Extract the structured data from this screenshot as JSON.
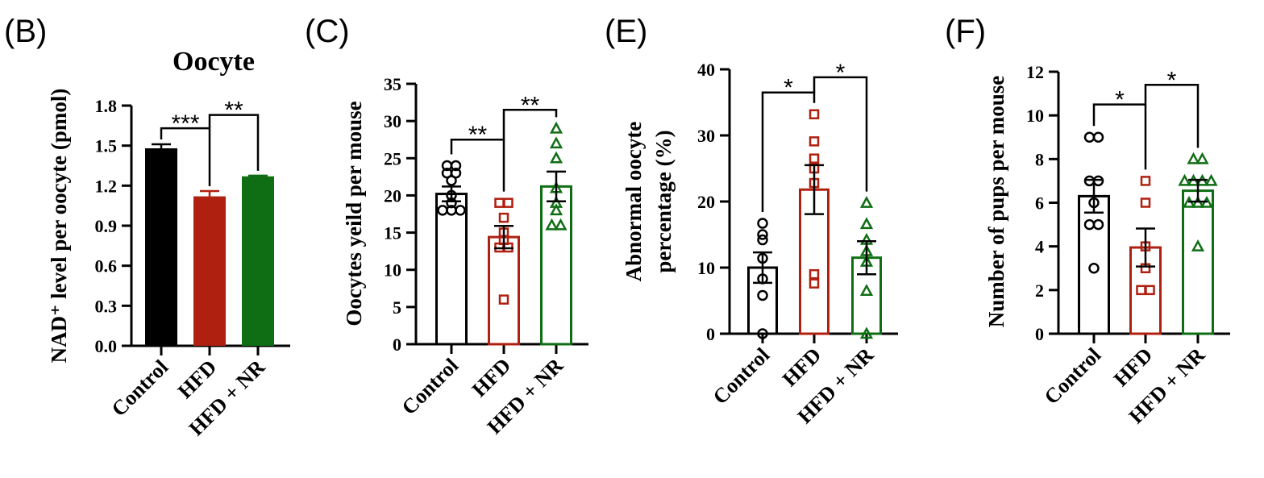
{
  "chart_data": [
    {
      "panel_label": "(B)",
      "type": "bar",
      "title": "Oocyte",
      "ylabel": [
        "NAD⁺ level per oocyte (pmol)"
      ],
      "categories": [
        "Control",
        "HFD",
        "HFD + NR"
      ],
      "ylim": [
        0,
        1.8
      ],
      "yticks": [
        "0.0",
        "0.3",
        "0.6",
        "0.9",
        "1.2",
        "1.5",
        "1.8"
      ],
      "filled": true,
      "values": [
        1.48,
        1.12,
        1.27
      ],
      "sem": [
        0.03,
        0.04,
        0.005
      ],
      "points": [],
      "significance": [
        {
          "from": 0,
          "to": 1,
          "label": "***",
          "level": 1.63
        },
        {
          "from": 1,
          "to": 2,
          "label": "**",
          "level": 1.73
        }
      ]
    },
    {
      "panel_label": "(C)",
      "type": "bar",
      "title": "",
      "ylabel": [
        "Oocytes yeild per mouse"
      ],
      "categories": [
        "Control",
        "HFD",
        "HFD + NR"
      ],
      "ylim": [
        0,
        35
      ],
      "yticks": [
        "0",
        "5",
        "10",
        "15",
        "20",
        "25",
        "30",
        "35"
      ],
      "filled": false,
      "values": [
        20.2,
        14.4,
        21.2
      ],
      "sem": [
        1.0,
        1.5,
        2.0
      ],
      "points": [
        [
          24,
          24,
          23,
          23,
          22,
          20,
          19,
          18,
          18,
          18
        ],
        [
          19,
          19,
          17,
          15,
          14,
          13,
          13,
          6
        ],
        [
          29,
          27,
          25,
          21,
          19,
          18,
          16,
          16
        ]
      ],
      "significance": [
        {
          "from": 0,
          "to": 1,
          "label": "**",
          "level": 27.5
        },
        {
          "from": 1,
          "to": 2,
          "label": "**",
          "level": 31.5
        }
      ]
    },
    {
      "panel_label": "(E)",
      "type": "bar",
      "title": "",
      "ylabel": [
        "Abnormal oocyte",
        "percentage (%)"
      ],
      "categories": [
        "Control",
        "HFD",
        "HFD + NR"
      ],
      "ylim": [
        0,
        40
      ],
      "yticks": [
        "0",
        "10",
        "20",
        "30",
        "40"
      ],
      "filled": false,
      "values": [
        10.0,
        21.8,
        11.5
      ],
      "sem": [
        2.3,
        3.7,
        2.5
      ],
      "points": [
        [
          16.7,
          15.0,
          14.2,
          11.4,
          8.3,
          5.8,
          0
        ],
        [
          33.2,
          29.1,
          26.5,
          25.0,
          22.8,
          9.0,
          7.6
        ],
        [
          19.8,
          16.6,
          14.2,
          12.5,
          10.9,
          6.5,
          0
        ]
      ],
      "significance": [
        {
          "from": 0,
          "to": 1,
          "label": "*",
          "level": 36.5
        },
        {
          "from": 1,
          "to": 2,
          "label": "*",
          "level": 38.8
        }
      ]
    },
    {
      "panel_label": "(F)",
      "type": "bar",
      "title": "",
      "ylabel": [
        "Number of pups per mouse"
      ],
      "categories": [
        "Control",
        "HFD",
        "HFD + NR"
      ],
      "ylim": [
        0,
        12
      ],
      "yticks": [
        "0",
        "2",
        "4",
        "6",
        "8",
        "10",
        "12"
      ],
      "filled": false,
      "values": [
        6.3,
        3.95,
        6.55
      ],
      "sem": [
        0.75,
        0.87,
        0.5
      ],
      "points": [
        [
          9,
          9,
          7,
          7,
          6,
          5,
          5,
          3
        ],
        [
          7,
          6,
          4,
          3,
          2,
          2
        ],
        [
          8,
          8,
          7,
          7,
          7,
          7,
          6,
          6,
          6,
          4
        ]
      ],
      "significance": [
        {
          "from": 0,
          "to": 1,
          "label": "*",
          "level": 10.5
        },
        {
          "from": 1,
          "to": 2,
          "label": "*",
          "level": 11.4
        }
      ]
    }
  ],
  "colors": {
    "Control": "#000000",
    "HFD": "#b02010",
    "HFD + NR": "#0f6e14",
    "markers": [
      "circle",
      "square",
      "triangle"
    ]
  }
}
